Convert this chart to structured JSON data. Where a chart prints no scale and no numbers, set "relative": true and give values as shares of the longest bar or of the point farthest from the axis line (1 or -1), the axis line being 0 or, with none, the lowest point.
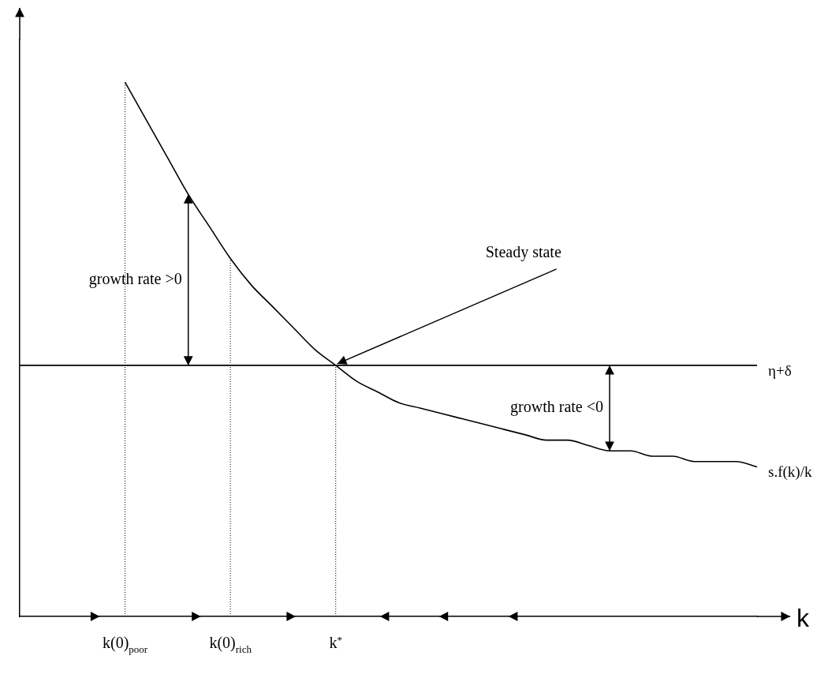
{
  "chart_data": {
    "type": "line",
    "relative": true,
    "xlabel": "k",
    "line_style": "solid",
    "categories": [
      null,
      null,
      null,
      null,
      null,
      "k(0)$_{poor}$",
      null,
      null,
      null,
      null,
      "k(0)$_{rich}$",
      null,
      null,
      null,
      null,
      "k$^{*}$",
      null,
      null,
      null,
      null,
      null,
      null,
      null,
      null,
      null,
      null,
      null,
      null,
      null,
      null,
      null,
      null,
      null,
      null,
      null,
      null
    ],
    "series": [
      {
        "name": "η+δ",
        "color": "#000000",
        "values": [
          0.47,
          0.47,
          0.47,
          0.47,
          0.47,
          0.47,
          0.47,
          0.47,
          0.47,
          0.47,
          0.47,
          0.47,
          0.47,
          0.47,
          0.47,
          0.47,
          0.47,
          0.47,
          0.47,
          0.47,
          0.47,
          0.47,
          0.47,
          0.47,
          0.47,
          0.47,
          0.47,
          0.47,
          0.47,
          0.47,
          0.47,
          0.47,
          0.47,
          0.47,
          0.47,
          0.47
        ]
      },
      {
        "name": "s.f(k)/k",
        "color": "#000000",
        "values": [
          null,
          null,
          null,
          null,
          null,
          1,
          0.93,
          0.86,
          0.79,
          0.73,
          0.67,
          0.62,
          0.58,
          0.54,
          0.5,
          0.47,
          0.44,
          0.42,
          0.4,
          0.39,
          0.38,
          0.37,
          0.36,
          0.35,
          0.34,
          0.33,
          0.33,
          0.32,
          0.31,
          0.31,
          0.3,
          0.3,
          0.29,
          0.29,
          0.29,
          0.28
        ]
      }
    ],
    "ref_lines": [
      {
        "axis": "x",
        "value": "k(0)$_{poor}$",
        "line_style": "dotted"
      },
      {
        "axis": "x",
        "value": "k(0)$_{rich}$",
        "line_style": "dotted"
      },
      {
        "axis": "x",
        "value": "k$^{*}$",
        "line_style": "dotted"
      }
    ],
    "annotations": [
      {
        "text": "Steady state",
        "x": "k$^{*}$",
        "y": 0.47
      },
      "growth rate >0",
      "growth rate <0"
    ]
  }
}
